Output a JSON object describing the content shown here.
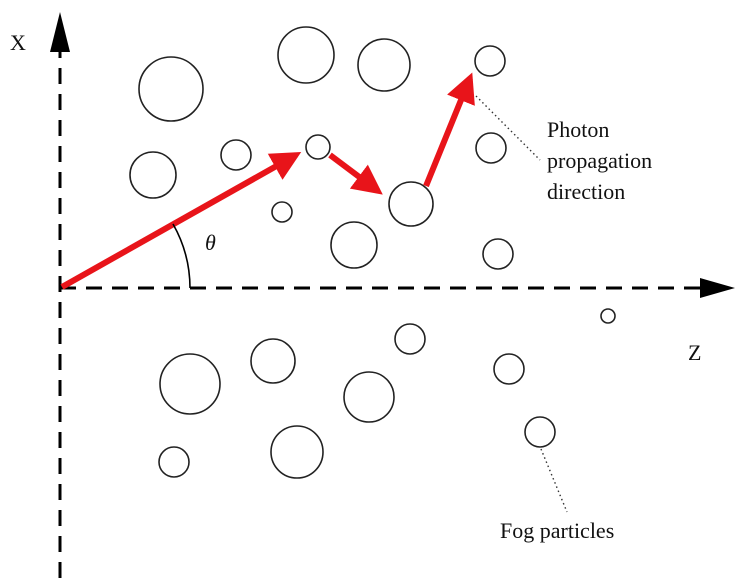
{
  "axes": {
    "x": "X",
    "z": "Z"
  },
  "angle": "θ",
  "annotations": {
    "photon": [
      "Photon",
      "propagation",
      "direction"
    ],
    "fog": "Fog particles"
  }
}
